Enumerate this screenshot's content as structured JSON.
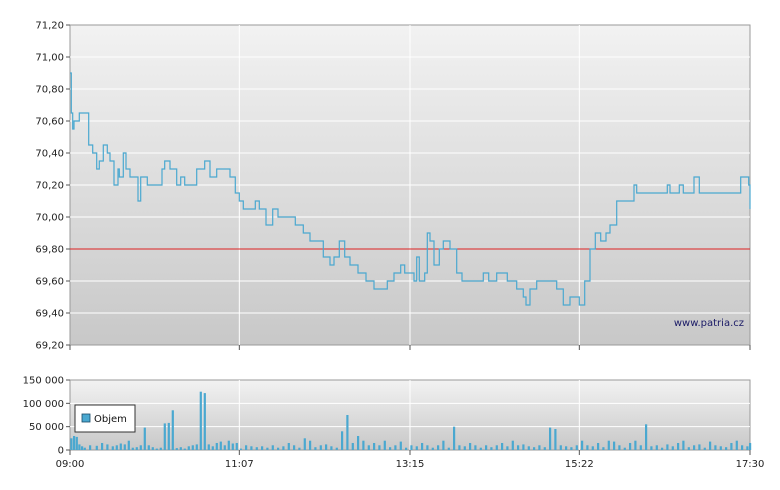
{
  "watermark": "www.patria.cz",
  "colors": {
    "price_line": "#4aa8d0",
    "volume_bar": "#4aa8d0",
    "reference_line": "#dd2222",
    "grid": "#ffffff",
    "plot_bg_top": "#f2f2f2",
    "plot_bg_bottom": "#c8c8c8"
  },
  "chart_data": [
    {
      "type": "line",
      "name": "price",
      "x_ticks": [
        "09:00",
        "11:07",
        "13:15",
        "15:22",
        "17:30"
      ],
      "y_ticks": [
        "71,20",
        "71,00",
        "70,80",
        "70,60",
        "70,40",
        "70,20",
        "70,00",
        "69,80",
        "69,60",
        "69,40",
        "69,20"
      ],
      "ylim": [
        69.2,
        71.2
      ],
      "xlim_minutes": [
        540,
        1050
      ],
      "grid": true,
      "reference_line": 69.8,
      "x": [
        "09:00",
        "09:01",
        "09:02",
        "09:03",
        "09:07",
        "09:14",
        "09:17",
        "09:20",
        "09:22",
        "09:25",
        "09:28",
        "09:30",
        "09:33",
        "09:36",
        "09:37",
        "09:40",
        "09:42",
        "09:45",
        "09:48",
        "09:51",
        "09:53",
        "09:58",
        "10:09",
        "10:11",
        "10:15",
        "10:18",
        "10:20",
        "10:23",
        "10:26",
        "10:30",
        "10:35",
        "10:41",
        "10:45",
        "10:50",
        "10:55",
        "11:00",
        "11:04",
        "11:07",
        "11:10",
        "11:16",
        "11:19",
        "11:22",
        "11:27",
        "11:32",
        "11:36",
        "11:40",
        "11:45",
        "11:49",
        "11:55",
        "12:00",
        "12:04",
        "12:10",
        "12:15",
        "12:18",
        "12:22",
        "12:26",
        "12:30",
        "12:36",
        "12:42",
        "12:48",
        "12:53",
        "12:58",
        "13:03",
        "13:08",
        "13:11",
        "13:15",
        "13:18",
        "13:20",
        "13:22",
        "13:24",
        "13:26",
        "13:28",
        "13:30",
        "13:33",
        "13:37",
        "13:40",
        "13:45",
        "13:50",
        "13:54",
        "14:00",
        "14:03",
        "14:06",
        "14:10",
        "14:14",
        "14:17",
        "14:20",
        "14:25",
        "14:28",
        "14:32",
        "14:35",
        "14:40",
        "14:42",
        "14:45",
        "14:50",
        "14:55",
        "15:00",
        "15:05",
        "15:10",
        "15:15",
        "15:22",
        "15:26",
        "15:30",
        "15:34",
        "15:38",
        "15:42",
        "15:45",
        "15:50",
        "15:54",
        "15:58",
        "16:01",
        "16:03",
        "16:05",
        "16:10",
        "16:15",
        "16:20",
        "16:23",
        "16:26",
        "16:28",
        "16:30",
        "16:32",
        "16:35",
        "16:37",
        "16:40",
        "16:44",
        "16:48",
        "16:52",
        "16:57",
        "17:00",
        "17:03",
        "17:06",
        "17:10",
        "17:13",
        "17:16",
        "17:20",
        "17:23",
        "17:27",
        "17:29",
        "17:30"
      ],
      "y": [
        70.9,
        70.65,
        70.55,
        70.6,
        70.65,
        70.45,
        70.4,
        70.3,
        70.35,
        70.45,
        70.4,
        70.35,
        70.2,
        70.3,
        70.25,
        70.4,
        70.3,
        70.25,
        70.25,
        70.1,
        70.25,
        70.2,
        70.3,
        70.35,
        70.3,
        70.3,
        70.2,
        70.25,
        70.2,
        70.2,
        70.3,
        70.35,
        70.25,
        70.3,
        70.3,
        70.25,
        70.15,
        70.1,
        70.05,
        70.05,
        70.1,
        70.05,
        69.95,
        70.05,
        70.0,
        70.0,
        70.0,
        69.95,
        69.9,
        69.85,
        69.85,
        69.75,
        69.7,
        69.75,
        69.85,
        69.75,
        69.7,
        69.65,
        69.6,
        69.55,
        69.55,
        69.6,
        69.65,
        69.7,
        69.65,
        69.65,
        69.6,
        69.75,
        69.6,
        69.6,
        69.65,
        69.9,
        69.85,
        69.7,
        69.8,
        69.85,
        69.8,
        69.65,
        69.6,
        69.6,
        69.6,
        69.6,
        69.65,
        69.6,
        69.6,
        69.65,
        69.65,
        69.6,
        69.6,
        69.55,
        69.5,
        69.45,
        69.55,
        69.6,
        69.6,
        69.6,
        69.55,
        69.45,
        69.5,
        69.45,
        69.6,
        69.8,
        69.9,
        69.85,
        69.9,
        69.95,
        70.1,
        70.1,
        70.1,
        70.1,
        70.2,
        70.15,
        70.15,
        70.15,
        70.15,
        70.15,
        70.15,
        70.2,
        70.15,
        70.15,
        70.15,
        70.2,
        70.15,
        70.15,
        70.25,
        70.15,
        70.15,
        70.15,
        70.15,
        70.15,
        70.15,
        70.15,
        70.15,
        70.15,
        70.25,
        70.25,
        70.2,
        70.05
      ]
    },
    {
      "type": "bar",
      "name": "Objem",
      "legend": "Objem",
      "x_ticks": [
        "09:00",
        "11:07",
        "13:15",
        "15:22",
        "17:30"
      ],
      "y_ticks": [
        "150 000",
        "100 000",
        "50 000",
        "0"
      ],
      "ylim": [
        0,
        150000
      ],
      "xlim_minutes": [
        540,
        1050
      ],
      "grid": true,
      "legend_position": "top-left",
      "x": [
        "09:01",
        "09:03",
        "09:05",
        "09:07",
        "09:09",
        "09:11",
        "09:15",
        "09:20",
        "09:24",
        "09:28",
        "09:32",
        "09:35",
        "09:38",
        "09:41",
        "09:44",
        "09:47",
        "09:50",
        "09:53",
        "09:56",
        "09:59",
        "10:02",
        "10:05",
        "10:08",
        "10:11",
        "10:14",
        "10:17",
        "10:20",
        "10:23",
        "10:26",
        "10:29",
        "10:32",
        "10:35",
        "10:38",
        "10:41",
        "10:44",
        "10:47",
        "10:50",
        "10:53",
        "10:56",
        "10:59",
        "11:02",
        "11:05",
        "11:08",
        "11:12",
        "11:16",
        "11:20",
        "11:24",
        "11:28",
        "11:32",
        "11:36",
        "11:40",
        "11:44",
        "11:48",
        "11:52",
        "11:56",
        "12:00",
        "12:04",
        "12:08",
        "12:12",
        "12:16",
        "12:20",
        "12:24",
        "12:28",
        "12:32",
        "12:36",
        "12:40",
        "12:44",
        "12:48",
        "12:52",
        "12:56",
        "13:00",
        "13:04",
        "13:08",
        "13:12",
        "13:16",
        "13:20",
        "13:24",
        "13:28",
        "13:32",
        "13:36",
        "13:40",
        "13:44",
        "13:48",
        "13:52",
        "13:56",
        "14:00",
        "14:04",
        "14:08",
        "14:12",
        "14:16",
        "14:20",
        "14:24",
        "14:28",
        "14:32",
        "14:36",
        "14:40",
        "14:44",
        "14:48",
        "14:52",
        "14:56",
        "15:00",
        "15:04",
        "15:08",
        "15:12",
        "15:16",
        "15:20",
        "15:24",
        "15:28",
        "15:32",
        "15:36",
        "15:40",
        "15:44",
        "15:48",
        "15:52",
        "15:56",
        "16:00",
        "16:04",
        "16:08",
        "16:12",
        "16:16",
        "16:20",
        "16:24",
        "16:28",
        "16:32",
        "16:36",
        "16:40",
        "16:44",
        "16:48",
        "16:52",
        "16:56",
        "17:00",
        "17:04",
        "17:08",
        "17:12",
        "17:16",
        "17:20",
        "17:24",
        "17:28",
        "17:30"
      ],
      "values": [
        25000,
        30000,
        28000,
        12000,
        8000,
        5000,
        10000,
        9000,
        15000,
        12000,
        8000,
        10000,
        14000,
        12000,
        20000,
        5000,
        6000,
        10000,
        48000,
        10000,
        6000,
        3000,
        5000,
        57000,
        58000,
        85000,
        4000,
        6000,
        3000,
        8000,
        10000,
        12000,
        125000,
        122000,
        12000,
        8000,
        15000,
        18000,
        10000,
        20000,
        14000,
        15000,
        3000,
        10000,
        8000,
        6000,
        8000,
        5000,
        10000,
        5000,
        8000,
        15000,
        10000,
        5000,
        25000,
        20000,
        6000,
        10000,
        12000,
        8000,
        5000,
        40000,
        75000,
        15000,
        30000,
        20000,
        10000,
        15000,
        10000,
        20000,
        6000,
        10000,
        18000,
        5000,
        10000,
        8000,
        15000,
        10000,
        5000,
        10000,
        20000,
        5000,
        50000,
        10000,
        8000,
        15000,
        10000,
        5000,
        10000,
        6000,
        10000,
        15000,
        8000,
        20000,
        10000,
        12000,
        8000,
        6000,
        10000,
        6000,
        48000,
        45000,
        10000,
        8000,
        6000,
        10000,
        20000,
        10000,
        8000,
        15000,
        6000,
        20000,
        18000,
        10000,
        5000,
        15000,
        20000,
        10000,
        55000,
        8000,
        10000,
        5000,
        12000,
        8000,
        15000,
        20000,
        6000,
        10000,
        12000,
        5000,
        18000,
        10000,
        8000,
        6000,
        15000,
        20000,
        10000,
        8000,
        15000
      ]
    }
  ]
}
